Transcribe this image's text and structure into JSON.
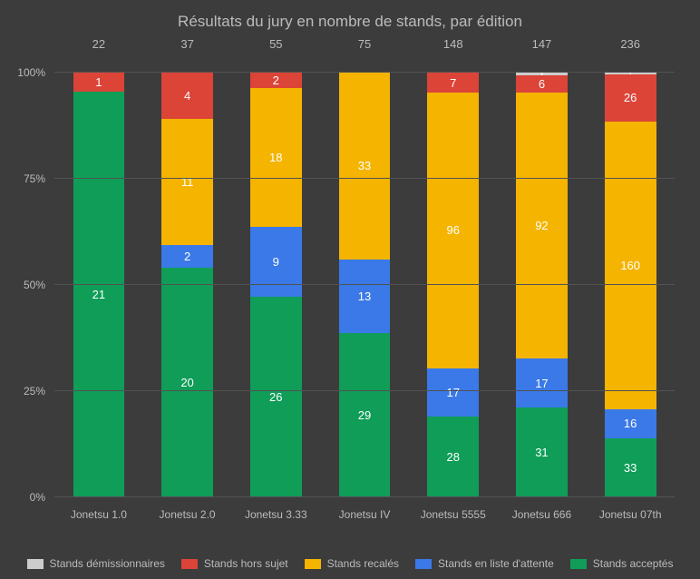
{
  "chart": {
    "type": "bar-stacked-100",
    "title": "Résultats du jury en nombre de stands, par édition",
    "background_color": "#3c3c3c",
    "grid_color": "#525252",
    "text_color": "#bbbbbb",
    "title_fontsize": 17,
    "label_fontsize": 12,
    "value_label_fontsize": 13,
    "value_label_color": "#ffffff",
    "y_ticks": [
      "0%",
      "25%",
      "50%",
      "75%",
      "100%"
    ],
    "categories": [
      "Jonetsu 1.0",
      "Jonetsu 2.0",
      "Jonetsu 3.33",
      "Jonetsu IV",
      "Jonetsu 5555",
      "Jonetsu 666",
      "Jonetsu 07th"
    ],
    "totals": [
      22,
      37,
      55,
      75,
      148,
      147,
      236
    ],
    "series": [
      {
        "name": "Stands acceptés",
        "color": "#0f9d58",
        "values": [
          21,
          20,
          26,
          29,
          28,
          31,
          33
        ]
      },
      {
        "name": "Stands en liste d'attente",
        "color": "#3a79e7",
        "values": [
          0,
          2,
          9,
          13,
          17,
          17,
          16
        ]
      },
      {
        "name": "Stands recalés",
        "color": "#f4b400",
        "values": [
          0,
          11,
          18,
          33,
          96,
          92,
          160
        ]
      },
      {
        "name": "Stands hors sujet",
        "color": "#db4437",
        "values": [
          1,
          4,
          2,
          0,
          7,
          6,
          26
        ]
      },
      {
        "name": "Stands démissionnaires",
        "color": "#cccccc",
        "values": [
          0,
          0,
          0,
          0,
          0,
          1,
          1
        ]
      }
    ],
    "legend_order": [
      4,
      3,
      2,
      1,
      0
    ]
  }
}
